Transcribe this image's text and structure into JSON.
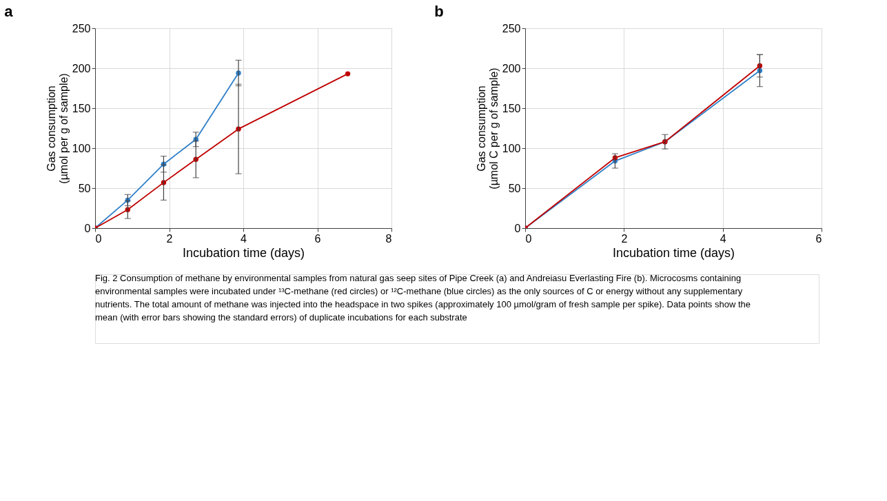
{
  "chart_data": [
    {
      "type": "line",
      "title": "a",
      "xlabel": "Incubation time (days)",
      "ylabel": "Gas consumption (µmol per g of sample)",
      "xlim": [
        0,
        8
      ],
      "xticks": [
        0,
        2,
        4,
        6,
        8
      ],
      "ylim": [
        0,
        250
      ],
      "yticks": [
        0,
        50,
        100,
        150,
        200,
        250
      ],
      "grid": true,
      "marker": "circle",
      "line_style": "solid",
      "legend": false,
      "series": [
        {
          "color": "#2e7fc8",
          "x": [
            0,
            0.88,
            1.85,
            2.72,
            3.87
          ],
          "values": [
            0,
            35,
            80,
            111,
            194
          ],
          "errors": [
            null,
            7,
            10,
            9,
            16
          ]
        },
        {
          "color": "#c00000",
          "x": [
            0,
            0.88,
            1.85,
            2.72,
            3.87,
            6.82
          ],
          "values": [
            0,
            23,
            57,
            86,
            124,
            193
          ],
          "errors": [
            null,
            11,
            22,
            23,
            56,
            null
          ]
        }
      ],
      "annotations": [
        "Fig. 2 Consumption of methane by environmental samples from natural gas seep sites of Pipe Creek (a) and Andreiasu Everlasting Fire (b). Microcosms containing environmental samples were incubated under ¹³C-methane (red circles) or ¹²C-methane (blue circles) as the only sources of C or energy without any supplementary nutrients. The total amount of methane was injected into the headspace in two spikes (approximately 100 µmol/gram of fresh sample per spike). Data points show the mean (with error bars showing the standard errors) of duplicate incubations for each substrate"
      ]
    },
    {
      "type": "line",
      "title": "b",
      "xlabel": "Incubation time (days)",
      "ylabel": "Gas consumption (µmol C per g of sample)",
      "xlim": [
        0,
        6
      ],
      "xticks": [
        0,
        2,
        4,
        6
      ],
      "ylim": [
        0,
        250
      ],
      "yticks": [
        0,
        50,
        100,
        150,
        200,
        250
      ],
      "grid": true,
      "marker": "circle",
      "line_style": "solid",
      "legend": false,
      "series": [
        {
          "color": "#2e7fc8",
          "x": [
            0,
            1.82,
            2.83,
            4.75
          ],
          "values": [
            0,
            84,
            108,
            197
          ],
          "errors": [
            null,
            9,
            null,
            20
          ]
        },
        {
          "color": "#c00000",
          "x": [
            0,
            1.82,
            2.83,
            4.75
          ],
          "values": [
            0,
            88,
            108,
            203
          ],
          "errors": [
            null,
            null,
            9,
            14
          ]
        }
      ]
    }
  ]
}
